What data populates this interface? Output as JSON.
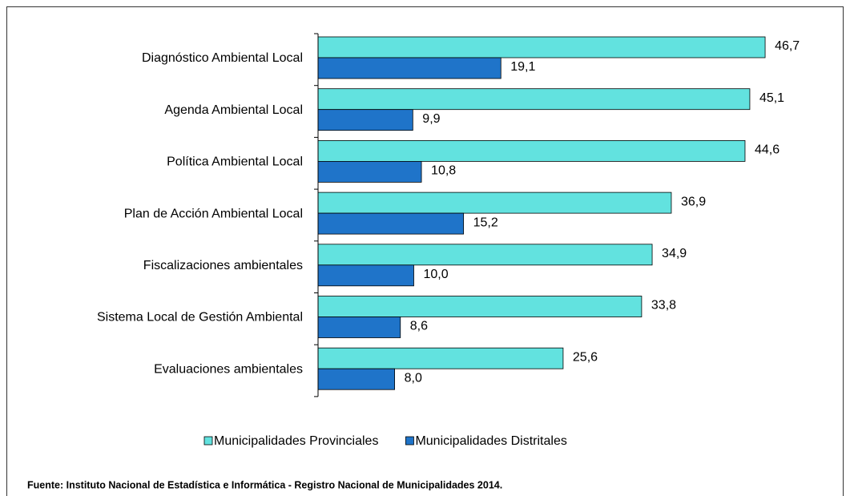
{
  "chart_data": {
    "type": "hbar",
    "categories": [
      "Diagnóstico Ambiental Local",
      "Agenda Ambiental Local",
      "Política Ambiental Local",
      "Plan de Acción Ambiental Local",
      "Fiscalizaciones ambientales",
      "Sistema Local de Gestión Ambiental",
      "Evaluaciones ambientales"
    ],
    "series": [
      {
        "name": "Municipalidades Provinciales",
        "color": "#62e2df",
        "values": [
          46.7,
          45.1,
          44.6,
          36.9,
          34.9,
          33.8,
          25.6
        ],
        "value_labels": [
          "46,7",
          "45,1",
          "44,6",
          "36,9",
          "34,9",
          "33,8",
          "25,6"
        ]
      },
      {
        "name": "Municipalidades Distritales",
        "color": "#1f74c9",
        "values": [
          19.1,
          9.9,
          10.8,
          15.2,
          10.0,
          8.6,
          8.0
        ],
        "value_labels": [
          "19,1",
          "9,9",
          "10,8",
          "15,2",
          "10,0",
          "8,6",
          "8,0"
        ]
      }
    ],
    "legend": "bottom",
    "source": "Fuente: Instituto Nacional de Estadística e Informática - Registro Nacional de Municipalidades 2014."
  }
}
